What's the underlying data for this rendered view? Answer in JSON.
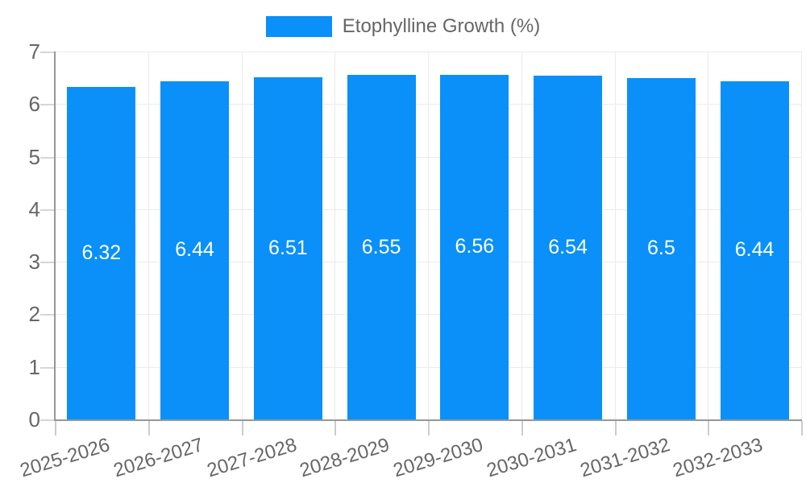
{
  "chart_data": {
    "type": "bar",
    "title": "Etophylline Growth (%)",
    "legend": {
      "position": "top",
      "label": "Etophylline Growth (%)"
    },
    "categories": [
      "2025-2026",
      "2026-2027",
      "2027-2028",
      "2028-2029",
      "2029-2030",
      "2030-2031",
      "2031-2032",
      "2032-2033"
    ],
    "values": [
      6.32,
      6.44,
      6.51,
      6.55,
      6.56,
      6.54,
      6.5,
      6.44
    ],
    "value_labels": [
      "6.32",
      "6.44",
      "6.51",
      "6.55",
      "6.56",
      "6.54",
      "6.5",
      "6.44"
    ],
    "xlabel": "",
    "ylabel": "",
    "ylim": [
      0,
      7
    ],
    "yticks": [
      0,
      1,
      2,
      3,
      4,
      5,
      6,
      7
    ],
    "grid": true,
    "colors": {
      "bar": "#0a90f8",
      "value_label": "#ffffff",
      "tick_text": "#666666",
      "gridline": "#ebebeb",
      "axis": "#979797"
    }
  }
}
